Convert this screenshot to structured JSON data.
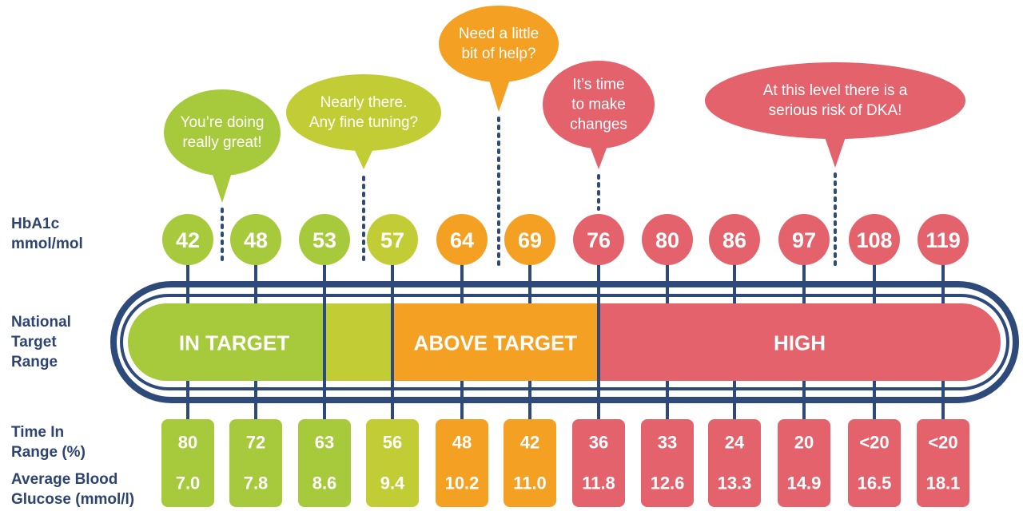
{
  "row_labels": {
    "hba1c": [
      "HbA1c",
      "mmol/mol"
    ],
    "national_target_range": [
      "National",
      "Target",
      "Range"
    ],
    "time_in_range": [
      "Time In",
      "Range (%)"
    ],
    "average_blood_glucose": [
      "Average Blood",
      "Glucose (mmol/l)"
    ]
  },
  "colors": {
    "green": "#a7c93c",
    "lime": "#c2cc35",
    "orange": "#f4a023",
    "red": "#e3626b",
    "navy": "#2d4a7a"
  },
  "chart_data": {
    "type": "table",
    "columns": [
      {
        "hba1c": "42",
        "time_in_range": "80",
        "glucose": "7.0",
        "color": "#a7c93c"
      },
      {
        "hba1c": "48",
        "time_in_range": "72",
        "glucose": "7.8",
        "color": "#a7c93c"
      },
      {
        "hba1c": "53",
        "time_in_range": "63",
        "glucose": "8.6",
        "color": "#a7c93c"
      },
      {
        "hba1c": "57",
        "time_in_range": "56",
        "glucose": "9.4",
        "color": "#c2cc35"
      },
      {
        "hba1c": "64",
        "time_in_range": "48",
        "glucose": "10.2",
        "color": "#f4a023"
      },
      {
        "hba1c": "69",
        "time_in_range": "42",
        "glucose": "11.0",
        "color": "#f4a023"
      },
      {
        "hba1c": "76",
        "time_in_range": "36",
        "glucose": "11.8",
        "color": "#e3626b"
      },
      {
        "hba1c": "80",
        "time_in_range": "33",
        "glucose": "12.6",
        "color": "#e3626b"
      },
      {
        "hba1c": "86",
        "time_in_range": "24",
        "glucose": "13.3",
        "color": "#e3626b"
      },
      {
        "hba1c": "97",
        "time_in_range": "20",
        "glucose": "14.9",
        "color": "#e3626b"
      },
      {
        "hba1c": "108",
        "time_in_range": "<20",
        "glucose": "16.5",
        "color": "#e3626b"
      },
      {
        "hba1c": "119",
        "time_in_range": "<20",
        "glucose": "18.1",
        "color": "#e3626b"
      }
    ],
    "range_bands": [
      {
        "label": "IN TARGET",
        "color": "#a7c93c"
      },
      {
        "label": "",
        "color": "#c2cc35"
      },
      {
        "label": "ABOVE TARGET",
        "color": "#f4a023"
      },
      {
        "label": "HIGH",
        "color": "#e3626b"
      }
    ],
    "callouts": [
      {
        "lines": [
          "You’re doing",
          "really great!"
        ],
        "color": "#a7c93c"
      },
      {
        "lines": [
          "Nearly there.",
          "Any fine tuning?"
        ],
        "color": "#c2cc35"
      },
      {
        "lines": [
          "Need a little",
          "bit of help?"
        ],
        "color": "#f4a023"
      },
      {
        "lines": [
          "It’s time",
          "to make",
          "changes"
        ],
        "color": "#e3626b"
      },
      {
        "lines": [
          "At this level there is a",
          "serious risk of DKA!"
        ],
        "color": "#e3626b"
      }
    ]
  }
}
